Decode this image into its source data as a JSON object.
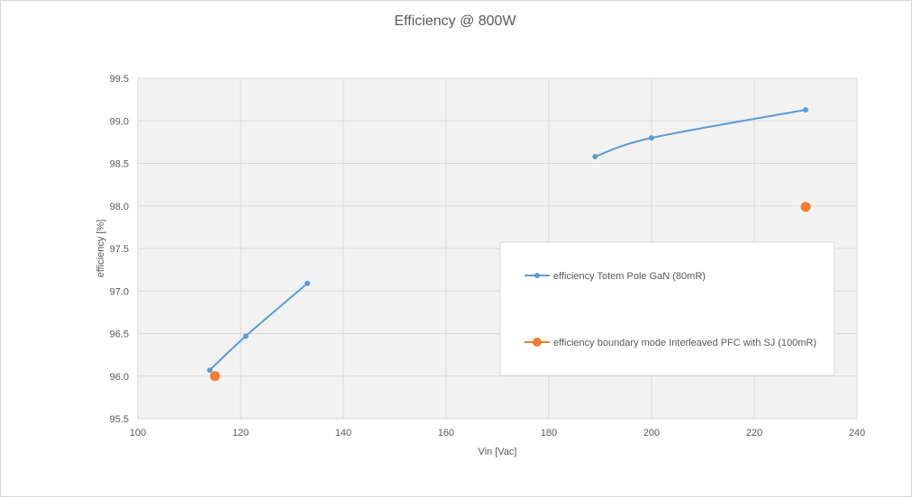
{
  "chart_data": {
    "type": "line",
    "title": "Efficiency @ 800W",
    "xlabel": "Vin [Vac]",
    "ylabel": "efficiency [%]",
    "xlim": [
      100,
      240
    ],
    "ylim": [
      95.5,
      99.5
    ],
    "xticks": [
      "100",
      "120",
      "140",
      "160",
      "180",
      "200",
      "220",
      "240"
    ],
    "yticks": [
      "95.5",
      "96.0",
      "96.5",
      "97.0",
      "97.5",
      "98.0",
      "98.5",
      "99.0",
      "99.5"
    ],
    "grid": true,
    "legend_position": "right",
    "series": [
      {
        "name": "efficiency Totem Pole GaN (80mR)",
        "color": "#5b9bd5",
        "marker": "small-circle",
        "segments": [
          [
            [
              114,
              96.07
            ],
            [
              121,
              96.47
            ],
            [
              133,
              97.09
            ]
          ],
          [
            [
              189,
              98.58
            ],
            [
              200,
              98.8
            ],
            [
              230,
              99.13
            ]
          ]
        ]
      },
      {
        "name": "efficiency boundary mode Interleaved PFC with SJ (100mR)",
        "color": "#ed7d31",
        "marker": "large-circle",
        "segments": [
          [
            [
              115,
              96.0
            ]
          ],
          [
            [
              230,
              97.99
            ]
          ]
        ]
      }
    ]
  }
}
